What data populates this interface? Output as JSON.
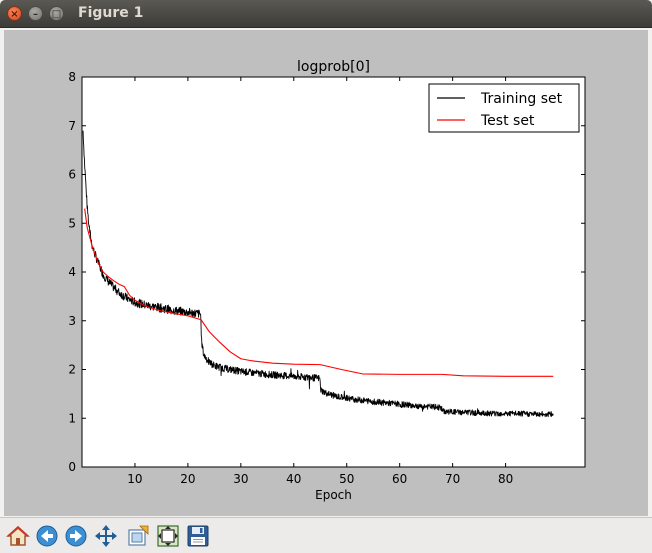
{
  "window": {
    "title": "Figure 1",
    "close_glyph": "×",
    "min_glyph": "–",
    "max_glyph": "□"
  },
  "toolbar": {
    "buttons": [
      {
        "icon": "home-icon"
      },
      {
        "icon": "back-arrow-icon"
      },
      {
        "icon": "forward-arrow-icon"
      },
      {
        "icon": "pan-move-icon"
      },
      {
        "icon": "zoom-rect-icon"
      },
      {
        "icon": "subplots-config-icon"
      },
      {
        "icon": "save-icon"
      }
    ]
  },
  "chart_data": {
    "type": "line",
    "title": "logprob[0]",
    "xlabel": "Epoch",
    "ylabel": "",
    "xlim": [
      0,
      95
    ],
    "ylim": [
      0,
      8
    ],
    "xticks": [
      10,
      20,
      30,
      40,
      50,
      60,
      70,
      80
    ],
    "yticks": [
      0,
      1,
      2,
      3,
      4,
      5,
      6,
      7,
      8
    ],
    "grid": false,
    "legend_position": "top-right",
    "series": [
      {
        "name": "Training set",
        "color": "#000000",
        "noisy": true,
        "x": [
          0.2,
          0.5,
          1,
          1.5,
          2,
          3,
          4,
          5,
          6,
          7,
          8,
          9,
          10,
          12,
          15,
          18,
          21,
          22.4,
          22.6,
          23,
          24,
          25,
          27,
          30,
          35,
          40,
          44.9,
          45.1,
          46,
          48,
          52,
          56,
          60,
          64,
          67.8,
          68.2,
          72,
          78,
          84,
          89
        ],
        "y": [
          6.9,
          6.2,
          5.3,
          4.8,
          4.5,
          4.2,
          3.95,
          3.8,
          3.68,
          3.58,
          3.5,
          3.43,
          3.38,
          3.32,
          3.26,
          3.2,
          3.16,
          3.14,
          2.55,
          2.3,
          2.15,
          2.08,
          2.02,
          1.96,
          1.9,
          1.86,
          1.82,
          1.58,
          1.52,
          1.45,
          1.38,
          1.33,
          1.29,
          1.25,
          1.22,
          1.14,
          1.12,
          1.1,
          1.09,
          1.08
        ]
      },
      {
        "name": "Test set",
        "color": "#ff0000",
        "noisy": false,
        "x": [
          0.5,
          1,
          2,
          3,
          4,
          5,
          6,
          7,
          8,
          9,
          10,
          12,
          15,
          18,
          20,
          22.5,
          24,
          26,
          28,
          30,
          32,
          36,
          40,
          45,
          49,
          53,
          60,
          68,
          72,
          80,
          89
        ],
        "y": [
          5.3,
          4.9,
          4.5,
          4.2,
          4.0,
          3.9,
          3.82,
          3.75,
          3.7,
          3.52,
          3.42,
          3.3,
          3.2,
          3.14,
          3.1,
          3.02,
          2.78,
          2.56,
          2.36,
          2.22,
          2.18,
          2.13,
          2.11,
          2.1,
          2.0,
          1.91,
          1.9,
          1.9,
          1.87,
          1.86,
          1.86
        ]
      }
    ]
  }
}
